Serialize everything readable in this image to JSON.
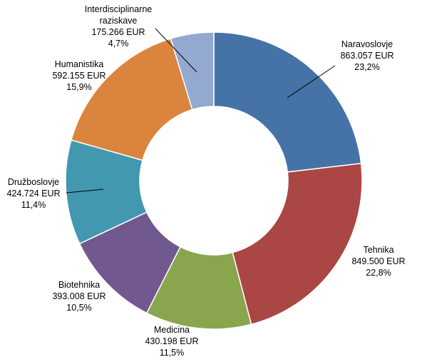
{
  "chart_data": {
    "type": "pie",
    "donut": true,
    "categories": [
      "Naravoslovje",
      "Tehnika",
      "Medicina",
      "Biotehnika",
      "Družboslovje",
      "Humanistika",
      "Interdisciplinarne raziskave"
    ],
    "series": [
      {
        "values": [
          863057,
          849500,
          430198,
          393008,
          424724,
          592155,
          175266
        ],
        "value_labels": [
          "863.057 EUR",
          "849.500 EUR",
          "430.198 EUR",
          "393.008 EUR",
          "424.724 EUR",
          "592.155 EUR",
          "175.266 EUR"
        ],
        "percent_labels": [
          "23,2%",
          "22,8%",
          "11,5%",
          "10,5%",
          "11,4%",
          "15,9%",
          "4,7%"
        ]
      }
    ],
    "label_lines": [
      [
        "Naravoslovje"
      ],
      [
        "Tehnika"
      ],
      [
        "Medicina"
      ],
      [
        "Biotehnika"
      ],
      [
        "Družboslovje"
      ],
      [
        "Humanistika"
      ],
      [
        "Interdisciplinarne",
        "raziskave"
      ]
    ],
    "colors": [
      "#4573A7",
      "#AA4644",
      "#89A54E",
      "#71588F",
      "#4298AF",
      "#DB843D",
      "#93A9CF"
    ],
    "legend": "none",
    "title": ""
  }
}
